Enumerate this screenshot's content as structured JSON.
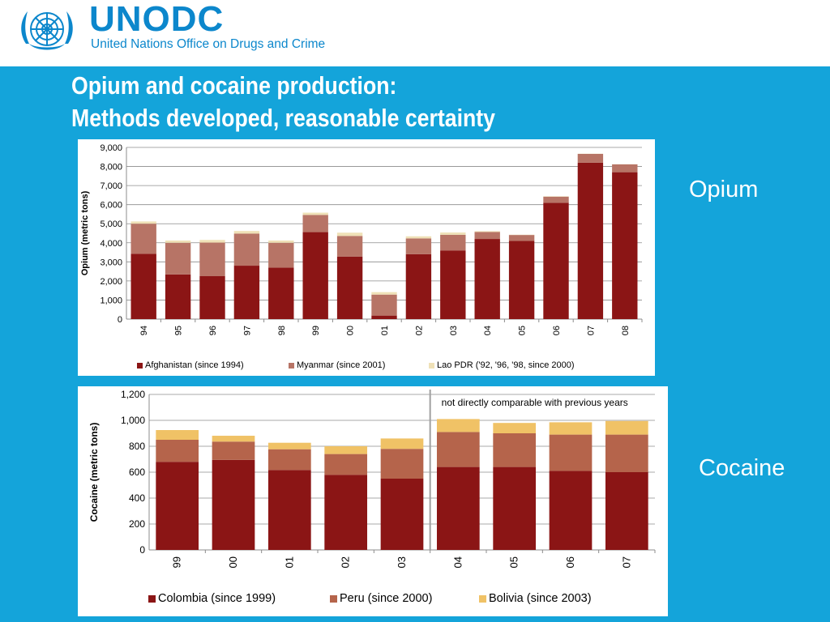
{
  "header": {
    "acronym": "UNODC",
    "org_name": "United Nations Office on Drugs and Crime"
  },
  "title_line1": "Opium and cocaine production:",
  "title_line2": "Methods developed, reasonable certainty",
  "side_labels": {
    "opium": "Opium",
    "cocaine": "Cocaine"
  },
  "colors": {
    "background": "#14a4da",
    "logo": "#0c87cc",
    "series_dark_red": "#8b1515",
    "series_rose": "#b77466",
    "series_cream": "#efe1b7",
    "series_brown": "#b5644b",
    "series_yellow": "#f0c266"
  },
  "chart_data": [
    {
      "type": "bar",
      "stacked": true,
      "categories": [
        "94",
        "95",
        "96",
        "97",
        "98",
        "99",
        "00",
        "01",
        "02",
        "03",
        "04",
        "05",
        "06",
        "07",
        "08"
      ],
      "series": [
        {
          "name": "Afghanistan (since 1994)",
          "color": "#8b1515",
          "values": [
            3420,
            2340,
            2250,
            2800,
            2700,
            4560,
            3280,
            185,
            3400,
            3600,
            4200,
            4100,
            6100,
            8200,
            7700
          ]
        },
        {
          "name": "Myanmar (since 2001)",
          "color": "#b77466",
          "values": [
            1580,
            1660,
            1760,
            1680,
            1300,
            900,
            1080,
            1100,
            830,
            820,
            370,
            310,
            320,
            460,
            410
          ]
        },
        {
          "name": "Lao PDR ('92, '96, '98, since 2000)",
          "color": "#efe1b7",
          "values": [
            120,
            120,
            140,
            140,
            120,
            120,
            170,
            130,
            110,
            120,
            40,
            15,
            20,
            10,
            10
          ]
        }
      ],
      "ylabel": "Opium  (metric tons)",
      "ylim": [
        0,
        9000
      ],
      "yticks": [
        0,
        1000,
        2000,
        3000,
        4000,
        5000,
        6000,
        7000,
        8000,
        9000
      ],
      "ytick_labels": [
        "0",
        "1,000",
        "2,000",
        "3,000",
        "4,000",
        "5,000",
        "6,000",
        "7,000",
        "8,000",
        "9,000"
      ],
      "grid": true,
      "legend_position": "bottom"
    },
    {
      "type": "bar",
      "stacked": true,
      "categories": [
        "99",
        "00",
        "01",
        "02",
        "03",
        "04",
        "05",
        "06",
        "07"
      ],
      "series": [
        {
          "name": "Colombia (since 1999)",
          "color": "#8b1515",
          "values": [
            680,
            695,
            617,
            580,
            550,
            640,
            640,
            610,
            600
          ]
        },
        {
          "name": "Peru (since 2000)",
          "color": "#b5644b",
          "values": [
            170,
            141,
            160,
            160,
            230,
            270,
            260,
            280,
            290
          ]
        },
        {
          "name": "Bolivia (since 2003)",
          "color": "#f0c266",
          "values": [
            75,
            45,
            50,
            60,
            80,
            100,
            80,
            95,
            105
          ]
        }
      ],
      "ylabel": "Cocaine (metric tons)",
      "ylim": [
        0,
        1200
      ],
      "yticks": [
        0,
        200,
        400,
        600,
        800,
        1000,
        1200
      ],
      "ytick_labels": [
        "0",
        "200",
        "400",
        "600",
        "800",
        "1,000",
        "1,200"
      ],
      "grid": true,
      "legend_position": "bottom",
      "annotation": "not directly comparable with previous years",
      "break_after_category": "03"
    }
  ]
}
